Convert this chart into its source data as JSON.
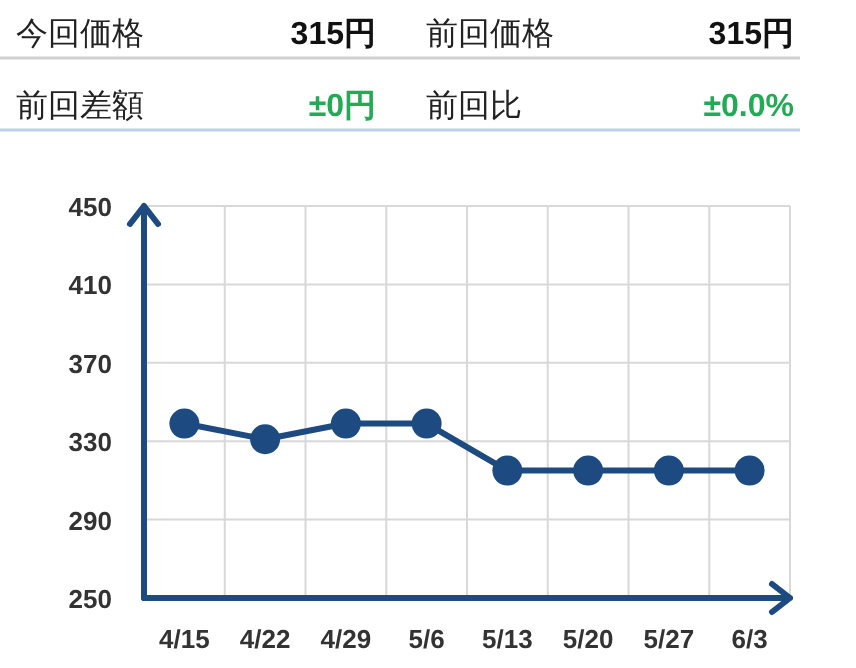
{
  "chart_data": [
    {
      "type": "other",
      "annotations": [
        "今回価格",
        "315円",
        "前回価格",
        "315円",
        "前回差額",
        "±0円",
        "前回比",
        "±0.0%"
      ],
      "colors": [
        "#222222",
        "#111111",
        "#222222",
        "#111111",
        "#222222",
        "#22aa55",
        "#222222",
        "#22aa55"
      ]
    },
    {
      "type": "line",
      "categories": [
        "4/15",
        "4/22",
        "4/29",
        "5/6",
        "5/13",
        "5/20",
        "5/27",
        "6/3"
      ],
      "series": [
        {
          "color": "#1d4a80",
          "values": [
            339,
            331,
            339,
            339,
            315,
            315,
            315,
            315
          ]
        }
      ],
      "ylim": [
        250,
        450
      ],
      "yticks": [
        250,
        290,
        330,
        370,
        410,
        450
      ],
      "grid": true,
      "marker": "circle",
      "line_style": "solid"
    }
  ]
}
